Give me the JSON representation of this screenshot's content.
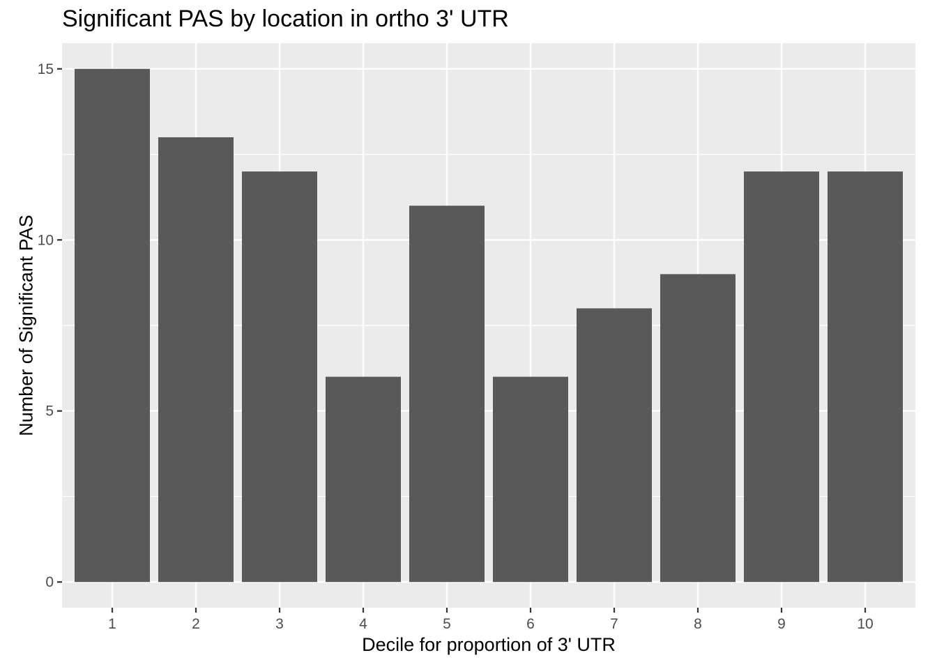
{
  "chart_data": {
    "type": "bar",
    "title": "Significant PAS by location in ortho 3' UTR",
    "xlabel": "Decile for proportion of 3' UTR",
    "ylabel": "Number of Significant PAS",
    "categories": [
      "1",
      "2",
      "3",
      "4",
      "5",
      "6",
      "7",
      "8",
      "9",
      "10"
    ],
    "values": [
      15,
      13,
      12,
      6,
      11,
      6,
      8,
      9,
      12,
      12
    ],
    "ylim": [
      -0.75,
      15.75
    ],
    "yticks": [
      0,
      5,
      10,
      15
    ],
    "grid": true,
    "legend": "none",
    "colors": {
      "bar": "#595959",
      "panel": "#ebebeb",
      "grid": "#ffffff",
      "tick_text": "#4d4d4d"
    }
  }
}
